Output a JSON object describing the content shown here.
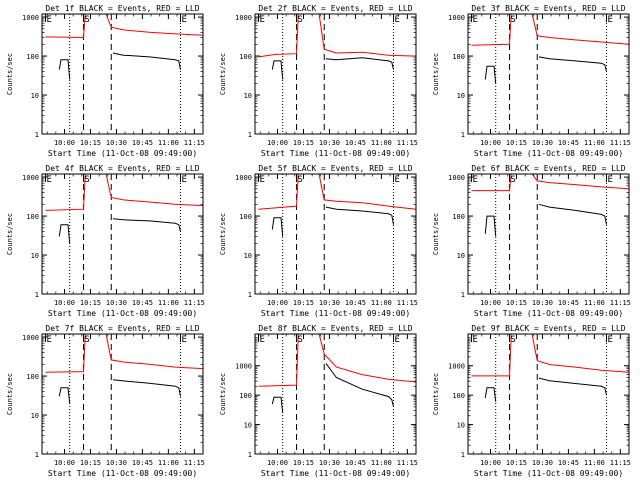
{
  "colors": {
    "events": "#000000",
    "lld": "#ff0000",
    "axes": "#000000",
    "background": "#ffffff"
  },
  "common": {
    "title_suffix": "BLACK = Events, RED = LLD",
    "ylabel": "Counts/sec",
    "xlabel": "Start Time (11-Oct-08 09:49:00)",
    "xticks": [
      "10:00",
      "10:15",
      "10:30",
      "10:45",
      "11:00",
      "11:15"
    ],
    "yticks": [
      "1",
      "10",
      "100",
      "1000"
    ]
  },
  "chart_data": [
    {
      "type": "line",
      "title_prefix": "Det 1f",
      "ylim": [
        1,
        1200
      ],
      "xlim_minutes": [
        -2,
        91
      ],
      "markers": [
        {
          "t": 0,
          "label": "E"
        },
        {
          "t": 22,
          "label": "S"
        },
        {
          "t": 78,
          "label": "E"
        }
      ],
      "dotted_lines": [
        14,
        78
      ],
      "dashed_lines": [
        22,
        38
      ],
      "series": [
        {
          "color": "lld",
          "segments": [
            {
              "x": [
                0,
                22,
                23,
                24
              ],
              "y": [
                310,
                300,
                1200,
                1200
              ]
            },
            {
              "x": [
                35,
                38,
                45,
                60,
                75,
                91
              ],
              "y": [
                1200,
                550,
                470,
                410,
                370,
                340
              ]
            }
          ]
        },
        {
          "color": "events",
          "segments": [
            {
              "x": [
                8,
                9,
                13,
                14
              ],
              "y": [
                45,
                80,
                80,
                25
              ]
            },
            {
              "x": [
                39,
                45,
                60,
                75,
                77,
                78
              ],
              "y": [
                120,
                105,
                95,
                80,
                75,
                45
              ]
            }
          ]
        }
      ]
    },
    {
      "type": "line",
      "title_prefix": "Det 2f",
      "ylim": [
        1,
        1200
      ],
      "xlim_minutes": [
        -2,
        91
      ],
      "markers": [
        {
          "t": 0,
          "label": "E"
        },
        {
          "t": 22,
          "label": "S"
        },
        {
          "t": 78,
          "label": "E"
        }
      ],
      "dotted_lines": [
        14,
        78
      ],
      "dashed_lines": [
        22,
        38
      ],
      "series": [
        {
          "color": "lld",
          "segments": [
            {
              "x": [
                0,
                10,
                22,
                23,
                24
              ],
              "y": [
                95,
                110,
                115,
                1200,
                1200
              ]
            },
            {
              "x": [
                35,
                38,
                45,
                60,
                75,
                91
              ],
              "y": [
                1200,
                150,
                120,
                125,
                105,
                100
              ]
            }
          ]
        },
        {
          "color": "events",
          "segments": [
            {
              "x": [
                8,
                9,
                13,
                14
              ],
              "y": [
                45,
                75,
                75,
                25
              ]
            },
            {
              "x": [
                39,
                45,
                60,
                75,
                77,
                78
              ],
              "y": [
                85,
                80,
                90,
                75,
                70,
                45
              ]
            }
          ]
        }
      ]
    },
    {
      "type": "line",
      "title_prefix": "Det 3f",
      "ylim": [
        1,
        1200
      ],
      "xlim_minutes": [
        -2,
        91
      ],
      "markers": [
        {
          "t": 0,
          "label": "E"
        },
        {
          "t": 22,
          "label": "S"
        },
        {
          "t": 78,
          "label": "E"
        }
      ],
      "dotted_lines": [
        14,
        78
      ],
      "dashed_lines": [
        22,
        38
      ],
      "series": [
        {
          "color": "lld",
          "segments": [
            {
              "x": [
                0,
                22,
                23,
                24
              ],
              "y": [
                190,
                200,
                1200,
                1200
              ]
            },
            {
              "x": [
                35,
                38,
                45,
                60,
                75,
                91
              ],
              "y": [
                1200,
                330,
                300,
                260,
                230,
                200
              ]
            }
          ]
        },
        {
          "color": "events",
          "segments": [
            {
              "x": [
                8,
                9,
                13,
                14
              ],
              "y": [
                25,
                55,
                55,
                20
              ]
            },
            {
              "x": [
                39,
                45,
                60,
                75,
                77,
                78
              ],
              "y": [
                95,
                85,
                75,
                65,
                60,
                40
              ]
            }
          ]
        }
      ]
    },
    {
      "type": "line",
      "title_prefix": "Det 4f",
      "ylim": [
        1,
        1200
      ],
      "xlim_minutes": [
        -2,
        91
      ],
      "markers": [
        {
          "t": 0,
          "label": "E"
        },
        {
          "t": 22,
          "label": "S"
        },
        {
          "t": 78,
          "label": "E"
        }
      ],
      "dotted_lines": [
        14,
        78
      ],
      "dashed_lines": [
        22,
        38
      ],
      "series": [
        {
          "color": "lld",
          "segments": [
            {
              "x": [
                0,
                22,
                23,
                24
              ],
              "y": [
                140,
                150,
                1200,
                1200
              ]
            },
            {
              "x": [
                35,
                38,
                45,
                60,
                75,
                91
              ],
              "y": [
                1200,
                300,
                260,
                230,
                200,
                185
              ]
            }
          ]
        },
        {
          "color": "events",
          "segments": [
            {
              "x": [
                8,
                9,
                13,
                14
              ],
              "y": [
                30,
                60,
                60,
                20
              ]
            },
            {
              "x": [
                39,
                45,
                60,
                75,
                77,
                78
              ],
              "y": [
                85,
                80,
                75,
                65,
                60,
                40
              ]
            }
          ]
        }
      ]
    },
    {
      "type": "line",
      "title_prefix": "Det 5f",
      "ylim": [
        1,
        1200
      ],
      "xlim_minutes": [
        -2,
        91
      ],
      "markers": [
        {
          "t": 0,
          "label": "E"
        },
        {
          "t": 22,
          "label": "S"
        },
        {
          "t": 78,
          "label": "E"
        }
      ],
      "dotted_lines": [
        14,
        78
      ],
      "dashed_lines": [
        22,
        38
      ],
      "series": [
        {
          "color": "lld",
          "segments": [
            {
              "x": [
                0,
                22,
                23,
                24
              ],
              "y": [
                150,
                180,
                1200,
                1200
              ]
            },
            {
              "x": [
                35,
                38,
                45,
                60,
                75,
                91
              ],
              "y": [
                1200,
                260,
                240,
                220,
                180,
                150
              ]
            }
          ]
        },
        {
          "color": "events",
          "segments": [
            {
              "x": [
                8,
                9,
                13,
                14
              ],
              "y": [
                45,
                90,
                90,
                30
              ]
            },
            {
              "x": [
                39,
                45,
                60,
                75,
                77,
                78
              ],
              "y": [
                170,
                150,
                135,
                115,
                105,
                60
              ]
            }
          ]
        }
      ]
    },
    {
      "type": "line",
      "title_prefix": "Det 6f",
      "ylim": [
        1,
        1200
      ],
      "xlim_minutes": [
        -2,
        91
      ],
      "markers": [
        {
          "t": 0,
          "label": "E"
        },
        {
          "t": 22,
          "label": "S"
        },
        {
          "t": 78,
          "label": "E"
        }
      ],
      "dotted_lines": [
        14,
        78
      ],
      "dashed_lines": [
        22,
        38
      ],
      "series": [
        {
          "color": "lld",
          "segments": [
            {
              "x": [
                0,
                22,
                23,
                24
              ],
              "y": [
                450,
                450,
                1200,
                1200
              ]
            },
            {
              "x": [
                35,
                38,
                45,
                60,
                75,
                91
              ],
              "y": [
                1200,
                800,
                720,
                640,
                560,
                500
              ]
            }
          ]
        },
        {
          "color": "events",
          "segments": [
            {
              "x": [
                8,
                9,
                13,
                14
              ],
              "y": [
                35,
                100,
                100,
                30
              ]
            },
            {
              "x": [
                39,
                45,
                60,
                75,
                77,
                78
              ],
              "y": [
                200,
                170,
                140,
                110,
                100,
                60
              ]
            }
          ]
        }
      ]
    },
    {
      "type": "line",
      "title_prefix": "Det 7f",
      "ylim": [
        1,
        1200
      ],
      "xlim_minutes": [
        -2,
        91
      ],
      "markers": [
        {
          "t": 0,
          "label": "E"
        },
        {
          "t": 22,
          "label": "S"
        },
        {
          "t": 78,
          "label": "E"
        }
      ],
      "dotted_lines": [
        14,
        78
      ],
      "dashed_lines": [
        22,
        38
      ],
      "series": [
        {
          "color": "lld",
          "segments": [
            {
              "x": [
                0,
                22,
                23,
                24
              ],
              "y": [
                125,
                130,
                1200,
                1200
              ]
            },
            {
              "x": [
                35,
                38,
                45,
                60,
                75,
                91
              ],
              "y": [
                1200,
                260,
                230,
                200,
                170,
                155
              ]
            }
          ]
        },
        {
          "color": "events",
          "segments": [
            {
              "x": [
                8,
                9,
                13,
                14
              ],
              "y": [
                30,
                50,
                50,
                20
              ]
            },
            {
              "x": [
                39,
                45,
                60,
                75,
                77,
                78
              ],
              "y": [
                80,
                75,
                65,
                55,
                50,
                30
              ]
            }
          ]
        }
      ]
    },
    {
      "type": "line",
      "title_prefix": "Det 8f",
      "ylim": [
        1,
        12000
      ],
      "xlim_minutes": [
        -2,
        91
      ],
      "markers": [
        {
          "t": 0,
          "label": "E"
        },
        {
          "t": 22,
          "label": "S"
        },
        {
          "t": 78,
          "label": "E"
        }
      ],
      "dotted_lines": [
        14,
        78
      ],
      "dashed_lines": [
        22,
        38
      ],
      "series": [
        {
          "color": "lld",
          "segments": [
            {
              "x": [
                0,
                22,
                23,
                24
              ],
              "y": [
                200,
                220,
                12000,
                12000
              ]
            },
            {
              "x": [
                35,
                38,
                45,
                60,
                75,
                91
              ],
              "y": [
                12000,
                2500,
                900,
                500,
                350,
                280
              ]
            }
          ]
        },
        {
          "color": "events",
          "segments": [
            {
              "x": [
                8,
                9,
                13,
                14
              ],
              "y": [
                50,
                85,
                85,
                25
              ]
            },
            {
              "x": [
                39,
                45,
                60,
                75,
                77,
                78
              ],
              "y": [
                1200,
                400,
                160,
                90,
                70,
                40
              ]
            }
          ]
        }
      ]
    },
    {
      "type": "line",
      "title_prefix": "Det 9f",
      "ylim": [
        1,
        12000
      ],
      "xlim_minutes": [
        -2,
        91
      ],
      "markers": [
        {
          "t": 0,
          "label": "E"
        },
        {
          "t": 22,
          "label": "S"
        },
        {
          "t": 78,
          "label": "E"
        }
      ],
      "dotted_lines": [
        14,
        78
      ],
      "dashed_lines": [
        22,
        38
      ],
      "series": [
        {
          "color": "lld",
          "segments": [
            {
              "x": [
                0,
                22,
                23,
                24
              ],
              "y": [
                450,
                450,
                12000,
                12000
              ]
            },
            {
              "x": [
                35,
                38,
                45,
                60,
                75,
                91
              ],
              "y": [
                12000,
                1500,
                1100,
                900,
                700,
                600
              ]
            }
          ]
        },
        {
          "color": "events",
          "segments": [
            {
              "x": [
                8,
                9,
                13,
                14
              ],
              "y": [
                80,
                180,
                180,
                60
              ]
            },
            {
              "x": [
                39,
                45,
                60,
                75,
                77,
                78
              ],
              "y": [
                380,
                310,
                250,
                200,
                180,
                100
              ]
            }
          ]
        }
      ]
    }
  ]
}
